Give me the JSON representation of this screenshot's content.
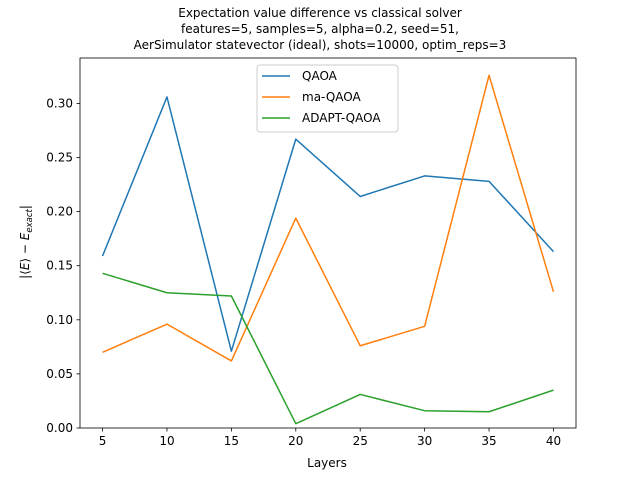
{
  "chart_data": {
    "type": "line",
    "title_lines": [
      "Expectation value difference vs classical solver",
      "features=5, samples=5, alpha=0.2, seed=51,",
      "AerSimulator statevector (ideal), shots=10000, optim_reps=3"
    ],
    "xlabel": "Layers",
    "ylabel": "|⟨E⟩ − E_exact|",
    "ylabel_parts": {
      "open": "|⟨",
      "e1": "E",
      "close": "⟩ − ",
      "e2": "E",
      "sub": "exact",
      "end": "|"
    },
    "x": [
      5,
      10,
      15,
      20,
      25,
      30,
      35,
      40
    ],
    "xlim": [
      3.25,
      41.75
    ],
    "ylim": [
      0.0,
      0.342
    ],
    "xticks": [
      5,
      10,
      15,
      20,
      25,
      30,
      35,
      40
    ],
    "yticks": [
      0.0,
      0.05,
      0.1,
      0.15,
      0.2,
      0.25,
      0.3
    ],
    "ytick_labels": [
      "0.00",
      "0.05",
      "0.10",
      "0.15",
      "0.20",
      "0.25",
      "0.30"
    ],
    "grid": false,
    "legend": "top-center",
    "series": [
      {
        "name": "QAOA",
        "color": "#1f77b4",
        "values": [
          0.159,
          0.306,
          0.071,
          0.267,
          0.214,
          0.233,
          0.228,
          0.163
        ]
      },
      {
        "name": "ma-QAOA",
        "color": "#ff7f0e",
        "values": [
          0.07,
          0.096,
          0.062,
          0.194,
          0.076,
          0.094,
          0.326,
          0.126
        ]
      },
      {
        "name": "ADAPT-QAOA",
        "color": "#2ca02c",
        "values": [
          0.143,
          0.125,
          0.122,
          0.004,
          0.031,
          0.016,
          0.015,
          0.035
        ]
      }
    ]
  }
}
